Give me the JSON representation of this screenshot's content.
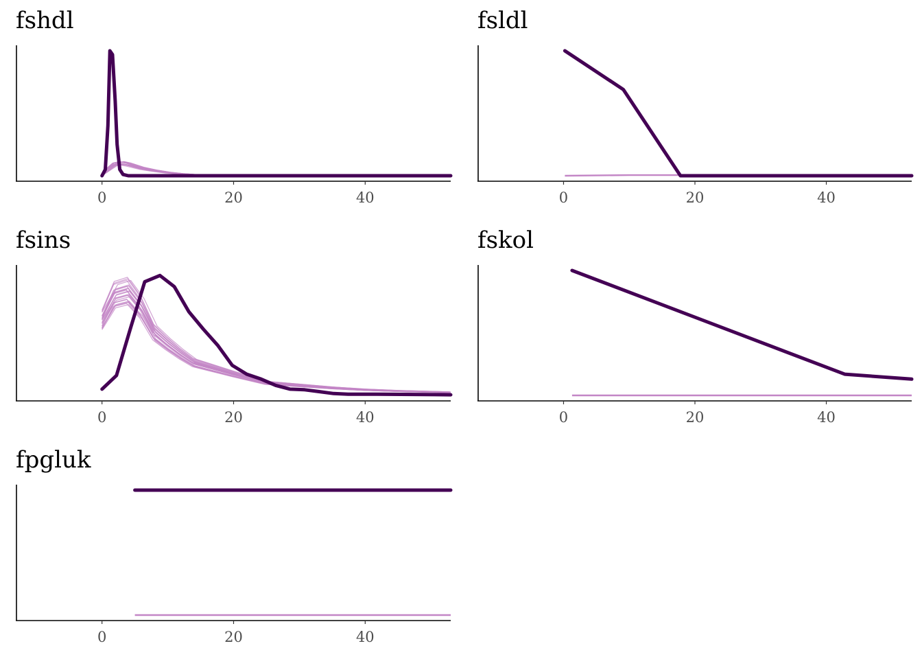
{
  "chart_data": [
    {
      "type": "line",
      "title": "fshdl",
      "xlabel": "",
      "ylabel": "",
      "xlim": [
        -13,
        53
      ],
      "ylim": [
        0,
        1
      ],
      "x_ticks": [
        "0",
        "20",
        "40"
      ],
      "grid": false,
      "colors": {
        "observed": "#440154",
        "imputed": "#c386c6"
      },
      "series": [
        {
          "role": "observed",
          "x": [
            0,
            0.5,
            0.9,
            1.2,
            1.6,
            2.0,
            2.3,
            2.7,
            3.2,
            4,
            10,
            20,
            30,
            40,
            53
          ],
          "values": [
            0.0,
            0.05,
            0.4,
            1.0,
            0.97,
            0.6,
            0.25,
            0.05,
            0.01,
            0.0,
            0.0,
            0.0,
            0.0,
            0.0,
            0.0
          ]
        },
        {
          "role": "imputed",
          "x": [
            0,
            1,
            2,
            3,
            4,
            6,
            8,
            10,
            12,
            15,
            20,
            30,
            40,
            53
          ],
          "values": [
            0.0,
            0.05,
            0.09,
            0.1,
            0.09,
            0.06,
            0.04,
            0.025,
            0.015,
            0.005,
            0.0,
            0.0,
            0.0,
            0.0
          ]
        }
      ],
      "imputed_line_count": 20
    },
    {
      "type": "line",
      "title": "fsldl",
      "xlabel": "",
      "ylabel": "",
      "xlim": [
        -13,
        53
      ],
      "ylim": [
        0,
        1
      ],
      "x_ticks": [
        "0",
        "20",
        "40"
      ],
      "grid": false,
      "colors": {
        "observed": "#440154",
        "imputed": "#c386c6"
      },
      "series": [
        {
          "role": "observed",
          "x": [
            0.2,
            9.1,
            17.8,
            53
          ],
          "values": [
            1.0,
            0.69,
            0.0,
            0.0
          ]
        },
        {
          "role": "imputed",
          "x": [
            0.2,
            10,
            17.8
          ],
          "values": [
            0.0,
            0.005,
            0.005
          ]
        }
      ],
      "imputed_line_count": 1
    },
    {
      "type": "line",
      "title": "fsins",
      "xlabel": "",
      "ylabel": "",
      "xlim": [
        -13,
        53
      ],
      "ylim": [
        0,
        1
      ],
      "x_ticks": [
        "0",
        "20",
        "40"
      ],
      "grid": false,
      "colors": {
        "observed": "#440154",
        "imputed": "#c386c6"
      },
      "series": [
        {
          "role": "observed",
          "x": [
            0,
            2.2,
            4.4,
            6.5,
            8.8,
            11.0,
            13.2,
            15.4,
            17.6,
            19.8,
            22.0,
            24.2,
            26.4,
            28.6,
            30.8,
            33.0,
            35.2,
            37.4,
            41.8,
            53
          ],
          "values": [
            0.05,
            0.16,
            0.55,
            0.91,
            0.96,
            0.87,
            0.67,
            0.53,
            0.4,
            0.24,
            0.17,
            0.13,
            0.08,
            0.05,
            0.045,
            0.03,
            0.015,
            0.01,
            0.01,
            0.005
          ]
        },
        {
          "role": "imputed",
          "x": [
            0,
            2,
            4,
            6,
            8,
            10,
            12,
            14,
            16,
            18,
            20,
            25,
            30,
            35,
            40,
            45,
            53
          ],
          "values": [
            0.6,
            0.8,
            0.83,
            0.7,
            0.5,
            0.41,
            0.33,
            0.26,
            0.23,
            0.2,
            0.17,
            0.1,
            0.08,
            0.06,
            0.045,
            0.035,
            0.025
          ]
        }
      ],
      "imputed_line_count": 24
    },
    {
      "type": "line",
      "title": "fskol",
      "xlabel": "",
      "ylabel": "",
      "xlim": [
        -13,
        53
      ],
      "ylim": [
        0,
        1
      ],
      "x_ticks": [
        "0",
        "20",
        "40"
      ],
      "grid": false,
      "colors": {
        "observed": "#440154",
        "imputed": "#c386c6"
      },
      "series": [
        {
          "role": "observed",
          "x": [
            1.3,
            42.8,
            53
          ],
          "values": [
            1.0,
            0.17,
            0.13
          ]
        },
        {
          "role": "imputed",
          "x": [
            1.3,
            53
          ],
          "values": [
            0.0,
            0.0
          ]
        }
      ],
      "imputed_line_count": 1
    },
    {
      "type": "line",
      "title": "fpgluk",
      "xlabel": "",
      "ylabel": "",
      "xlim": [
        -13,
        53
      ],
      "ylim": [
        0,
        1
      ],
      "x_ticks": [
        "0",
        "20",
        "40"
      ],
      "grid": false,
      "colors": {
        "observed": "#440154",
        "imputed": "#c386c6"
      },
      "series": [
        {
          "role": "observed",
          "x": [
            5,
            53
          ],
          "values": [
            1.0,
            1.0
          ]
        },
        {
          "role": "imputed",
          "x": [
            5,
            53
          ],
          "values": [
            0.0,
            0.0
          ]
        }
      ],
      "imputed_line_count": 1
    }
  ]
}
